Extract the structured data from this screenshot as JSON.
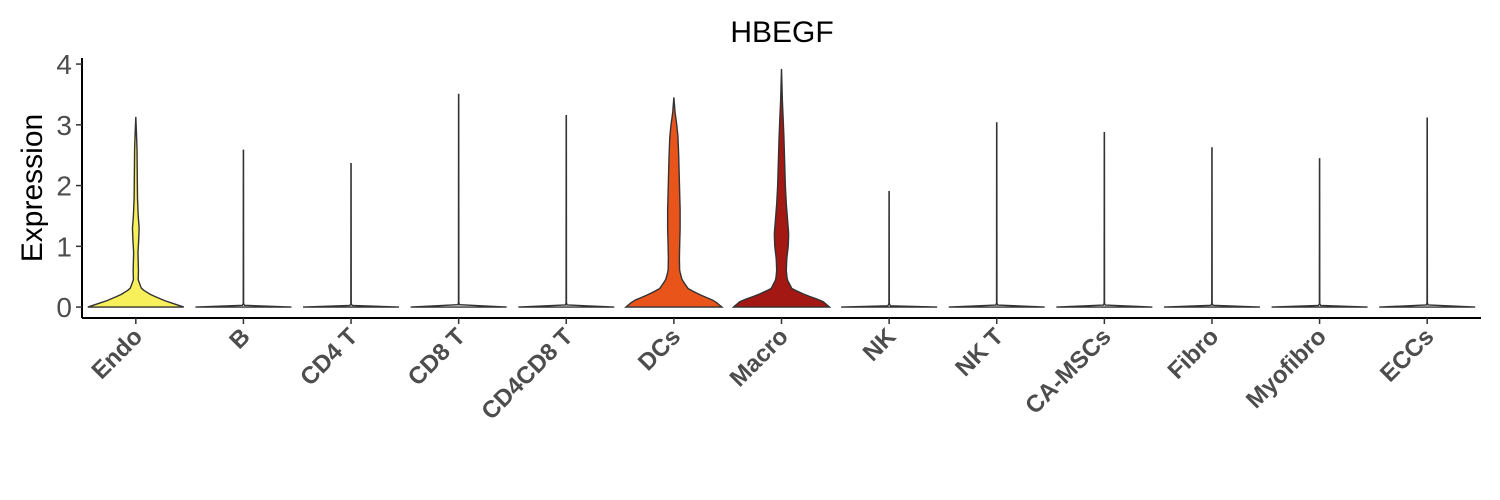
{
  "chart_data": {
    "type": "violin",
    "title": "HBEGF",
    "xlabel": "",
    "ylabel": "Expression",
    "ylim": [
      -0.18,
      4.1
    ],
    "yticks": [
      0,
      1,
      2,
      3,
      4
    ],
    "grid": false,
    "legend": "none",
    "categories": [
      "Endo",
      "B",
      "CD4 T",
      "CD8 T",
      "CD4CD8 T",
      "DCs",
      "Macro",
      "NK",
      "NK T",
      "CA-MSCs",
      "Fibro",
      "Myofibro",
      "ECCs"
    ],
    "series": [
      {
        "category": "Endo",
        "max": 3.13,
        "color": "#F7F05A",
        "profile": [
          [
            0,
            1.0
          ],
          [
            0.1,
            0.62
          ],
          [
            0.2,
            0.32
          ],
          [
            0.3,
            0.12
          ],
          [
            0.45,
            0.05
          ],
          [
            0.6,
            0.055
          ],
          [
            0.75,
            0.05
          ],
          [
            0.9,
            0.045
          ],
          [
            1.1,
            0.06
          ],
          [
            1.3,
            0.07
          ],
          [
            1.5,
            0.05
          ],
          [
            1.8,
            0.035
          ],
          [
            2.2,
            0.03
          ],
          [
            2.6,
            0.025
          ],
          [
            2.9,
            0.012
          ],
          [
            3.13,
            0
          ]
        ]
      },
      {
        "category": "B",
        "max": 2.58,
        "color": "#FFFFFF",
        "profile": [
          [
            0,
            1.0
          ],
          [
            0.02,
            0.03
          ],
          [
            0.05,
            0.004
          ],
          [
            2.58,
            0.002
          ]
        ]
      },
      {
        "category": "CD4 T",
        "max": 2.36,
        "color": "#FFFFFF",
        "profile": [
          [
            0,
            1.0
          ],
          [
            0.02,
            0.03
          ],
          [
            0.05,
            0.004
          ],
          [
            2.36,
            0.002
          ]
        ]
      },
      {
        "category": "CD8 T",
        "max": 3.5,
        "color": "#FFFFFF",
        "profile": [
          [
            0,
            1.0
          ],
          [
            0.02,
            0.03
          ],
          [
            0.05,
            0.004
          ],
          [
            3.5,
            0.002
          ]
        ]
      },
      {
        "category": "CD4CD8 T",
        "max": 3.15,
        "color": "#FFFFFF",
        "profile": [
          [
            0,
            1.0
          ],
          [
            0.02,
            0.03
          ],
          [
            0.05,
            0.004
          ],
          [
            3.15,
            0.002
          ]
        ]
      },
      {
        "category": "DCs",
        "max": 3.45,
        "color": "#E8541A",
        "profile": [
          [
            0,
            1.0
          ],
          [
            0.1,
            0.85
          ],
          [
            0.2,
            0.55
          ],
          [
            0.3,
            0.3
          ],
          [
            0.45,
            0.17
          ],
          [
            0.6,
            0.12
          ],
          [
            0.8,
            0.115
          ],
          [
            1.0,
            0.12
          ],
          [
            1.3,
            0.13
          ],
          [
            1.6,
            0.13
          ],
          [
            1.9,
            0.12
          ],
          [
            2.2,
            0.11
          ],
          [
            2.5,
            0.1
          ],
          [
            2.8,
            0.085
          ],
          [
            3.0,
            0.06
          ],
          [
            3.2,
            0.025
          ],
          [
            3.45,
            0
          ]
        ]
      },
      {
        "category": "Macro",
        "max": 3.92,
        "color": "#A31812",
        "profile": [
          [
            0,
            1.0
          ],
          [
            0.1,
            0.85
          ],
          [
            0.2,
            0.5
          ],
          [
            0.3,
            0.22
          ],
          [
            0.45,
            0.12
          ],
          [
            0.6,
            0.1
          ],
          [
            0.8,
            0.11
          ],
          [
            1.0,
            0.14
          ],
          [
            1.2,
            0.15
          ],
          [
            1.4,
            0.13
          ],
          [
            1.7,
            0.1
          ],
          [
            2.0,
            0.08
          ],
          [
            2.4,
            0.065
          ],
          [
            2.8,
            0.05
          ],
          [
            3.1,
            0.035
          ],
          [
            3.4,
            0.018
          ],
          [
            3.7,
            0.008
          ],
          [
            3.92,
            0
          ]
        ]
      },
      {
        "category": "NK",
        "max": 1.9,
        "color": "#FFFFFF",
        "profile": [
          [
            0,
            1.0
          ],
          [
            0.02,
            0.03
          ],
          [
            0.05,
            0.004
          ],
          [
            1.9,
            0.002
          ]
        ]
      },
      {
        "category": "NK T",
        "max": 3.03,
        "color": "#FFFFFF",
        "profile": [
          [
            0,
            1.0
          ],
          [
            0.02,
            0.03
          ],
          [
            0.05,
            0.004
          ],
          [
            3.03,
            0.002
          ]
        ]
      },
      {
        "category": "CA-MSCs",
        "max": 2.87,
        "color": "#FFFFFF",
        "profile": [
          [
            0,
            1.0
          ],
          [
            0.02,
            0.03
          ],
          [
            0.05,
            0.004
          ],
          [
            2.87,
            0.002
          ]
        ]
      },
      {
        "category": "Fibro",
        "max": 2.62,
        "color": "#FFFFFF",
        "profile": [
          [
            0,
            1.0
          ],
          [
            0.02,
            0.03
          ],
          [
            0.05,
            0.004
          ],
          [
            2.62,
            0.002
          ]
        ]
      },
      {
        "category": "Myofibro",
        "max": 2.44,
        "color": "#FFFFFF",
        "profile": [
          [
            0,
            1.0
          ],
          [
            0.02,
            0.03
          ],
          [
            0.05,
            0.004
          ],
          [
            2.44,
            0.002
          ]
        ]
      },
      {
        "category": "ECCs",
        "max": 3.11,
        "color": "#FFFFFF",
        "profile": [
          [
            0,
            1.0
          ],
          [
            0.02,
            0.03
          ],
          [
            0.05,
            0.004
          ],
          [
            3.11,
            0.002
          ]
        ]
      }
    ]
  }
}
